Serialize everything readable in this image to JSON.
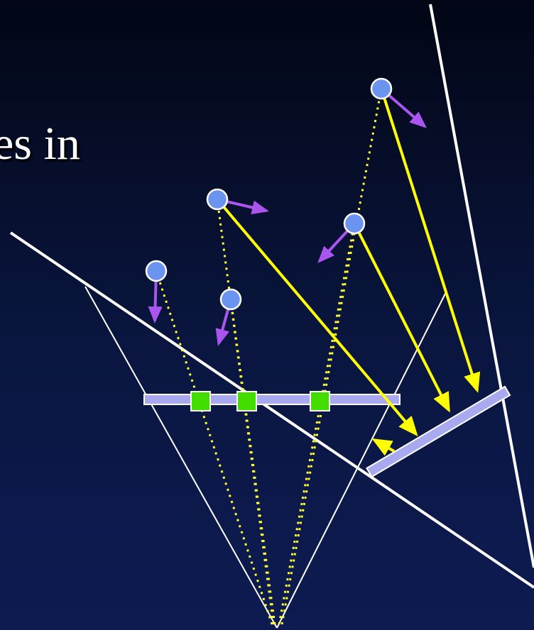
{
  "title_fragment": "es in",
  "colors": {
    "ray": "#ffff00",
    "dotted_projection": "#ffff33",
    "motion_arrow": "#aa55ee",
    "point": "#6b93f0",
    "image_plane_bar": "#a9a9f0",
    "projected_point": "#44dd00",
    "frame_line": "#ffffff"
  },
  "icons": [
    "world-point-marker",
    "projected-point-marker",
    "motion-arrow",
    "flow-arrow"
  ]
}
